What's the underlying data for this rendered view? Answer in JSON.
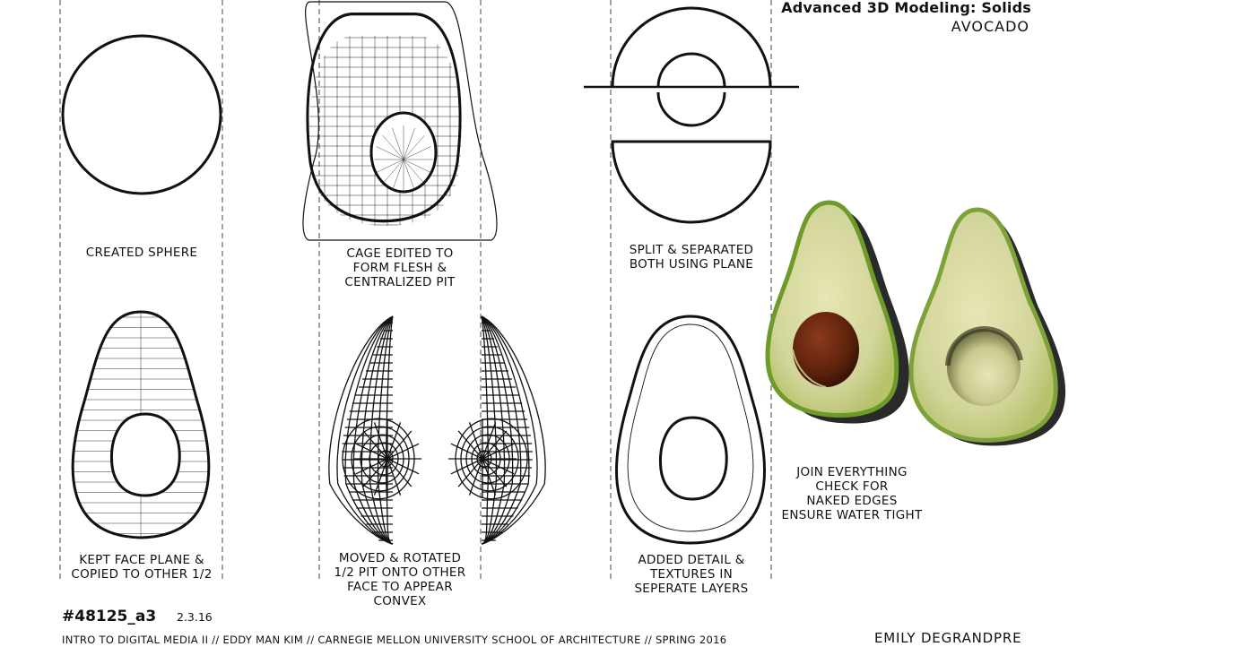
{
  "header": {
    "title": "Advanced 3D Modeling: Solids",
    "subtitle": "AVOCADO"
  },
  "steps": [
    {
      "label": "CREATED SPHERE"
    },
    {
      "label": "CAGE EDITED TO\nFORM FLESH &\nCENTRALIZED PIT"
    },
    {
      "label": "SPLIT & SEPARATED\nBOTH USING PLANE"
    },
    {
      "label": "KEPT FACE PLANE &\nCOPIED TO OTHER 1/2"
    },
    {
      "label": "MOVED & ROTATED\n1/2 PIT ONTO OTHER\nFACE TO APPEAR\nCONVEX"
    },
    {
      "label": "ADDED DETAIL &\nTEXTURES IN\nSEPERATE LAYERS"
    },
    {
      "label": "JOIN EVERYTHING\nCHECK FOR\nNAKED EDGES\nENSURE WATER TIGHT"
    }
  ],
  "footer": {
    "sheet_number": "#48125_a3",
    "date": "2.3.16",
    "credit": "INTRO TO DIGITAL MEDIA II // EDDY MAN KIM // CARNEGIE MELLON UNIVERSITY SCHOOL OF ARCHITECTURE // SPRING 2016",
    "author": "EMILY DEGRANDPRE"
  },
  "colors": {
    "ink": "#111111",
    "skin": "#6e9a2a",
    "flesh": "#d9dca0",
    "pit": "#6a2a10",
    "shadow": "#2a2a2a"
  }
}
